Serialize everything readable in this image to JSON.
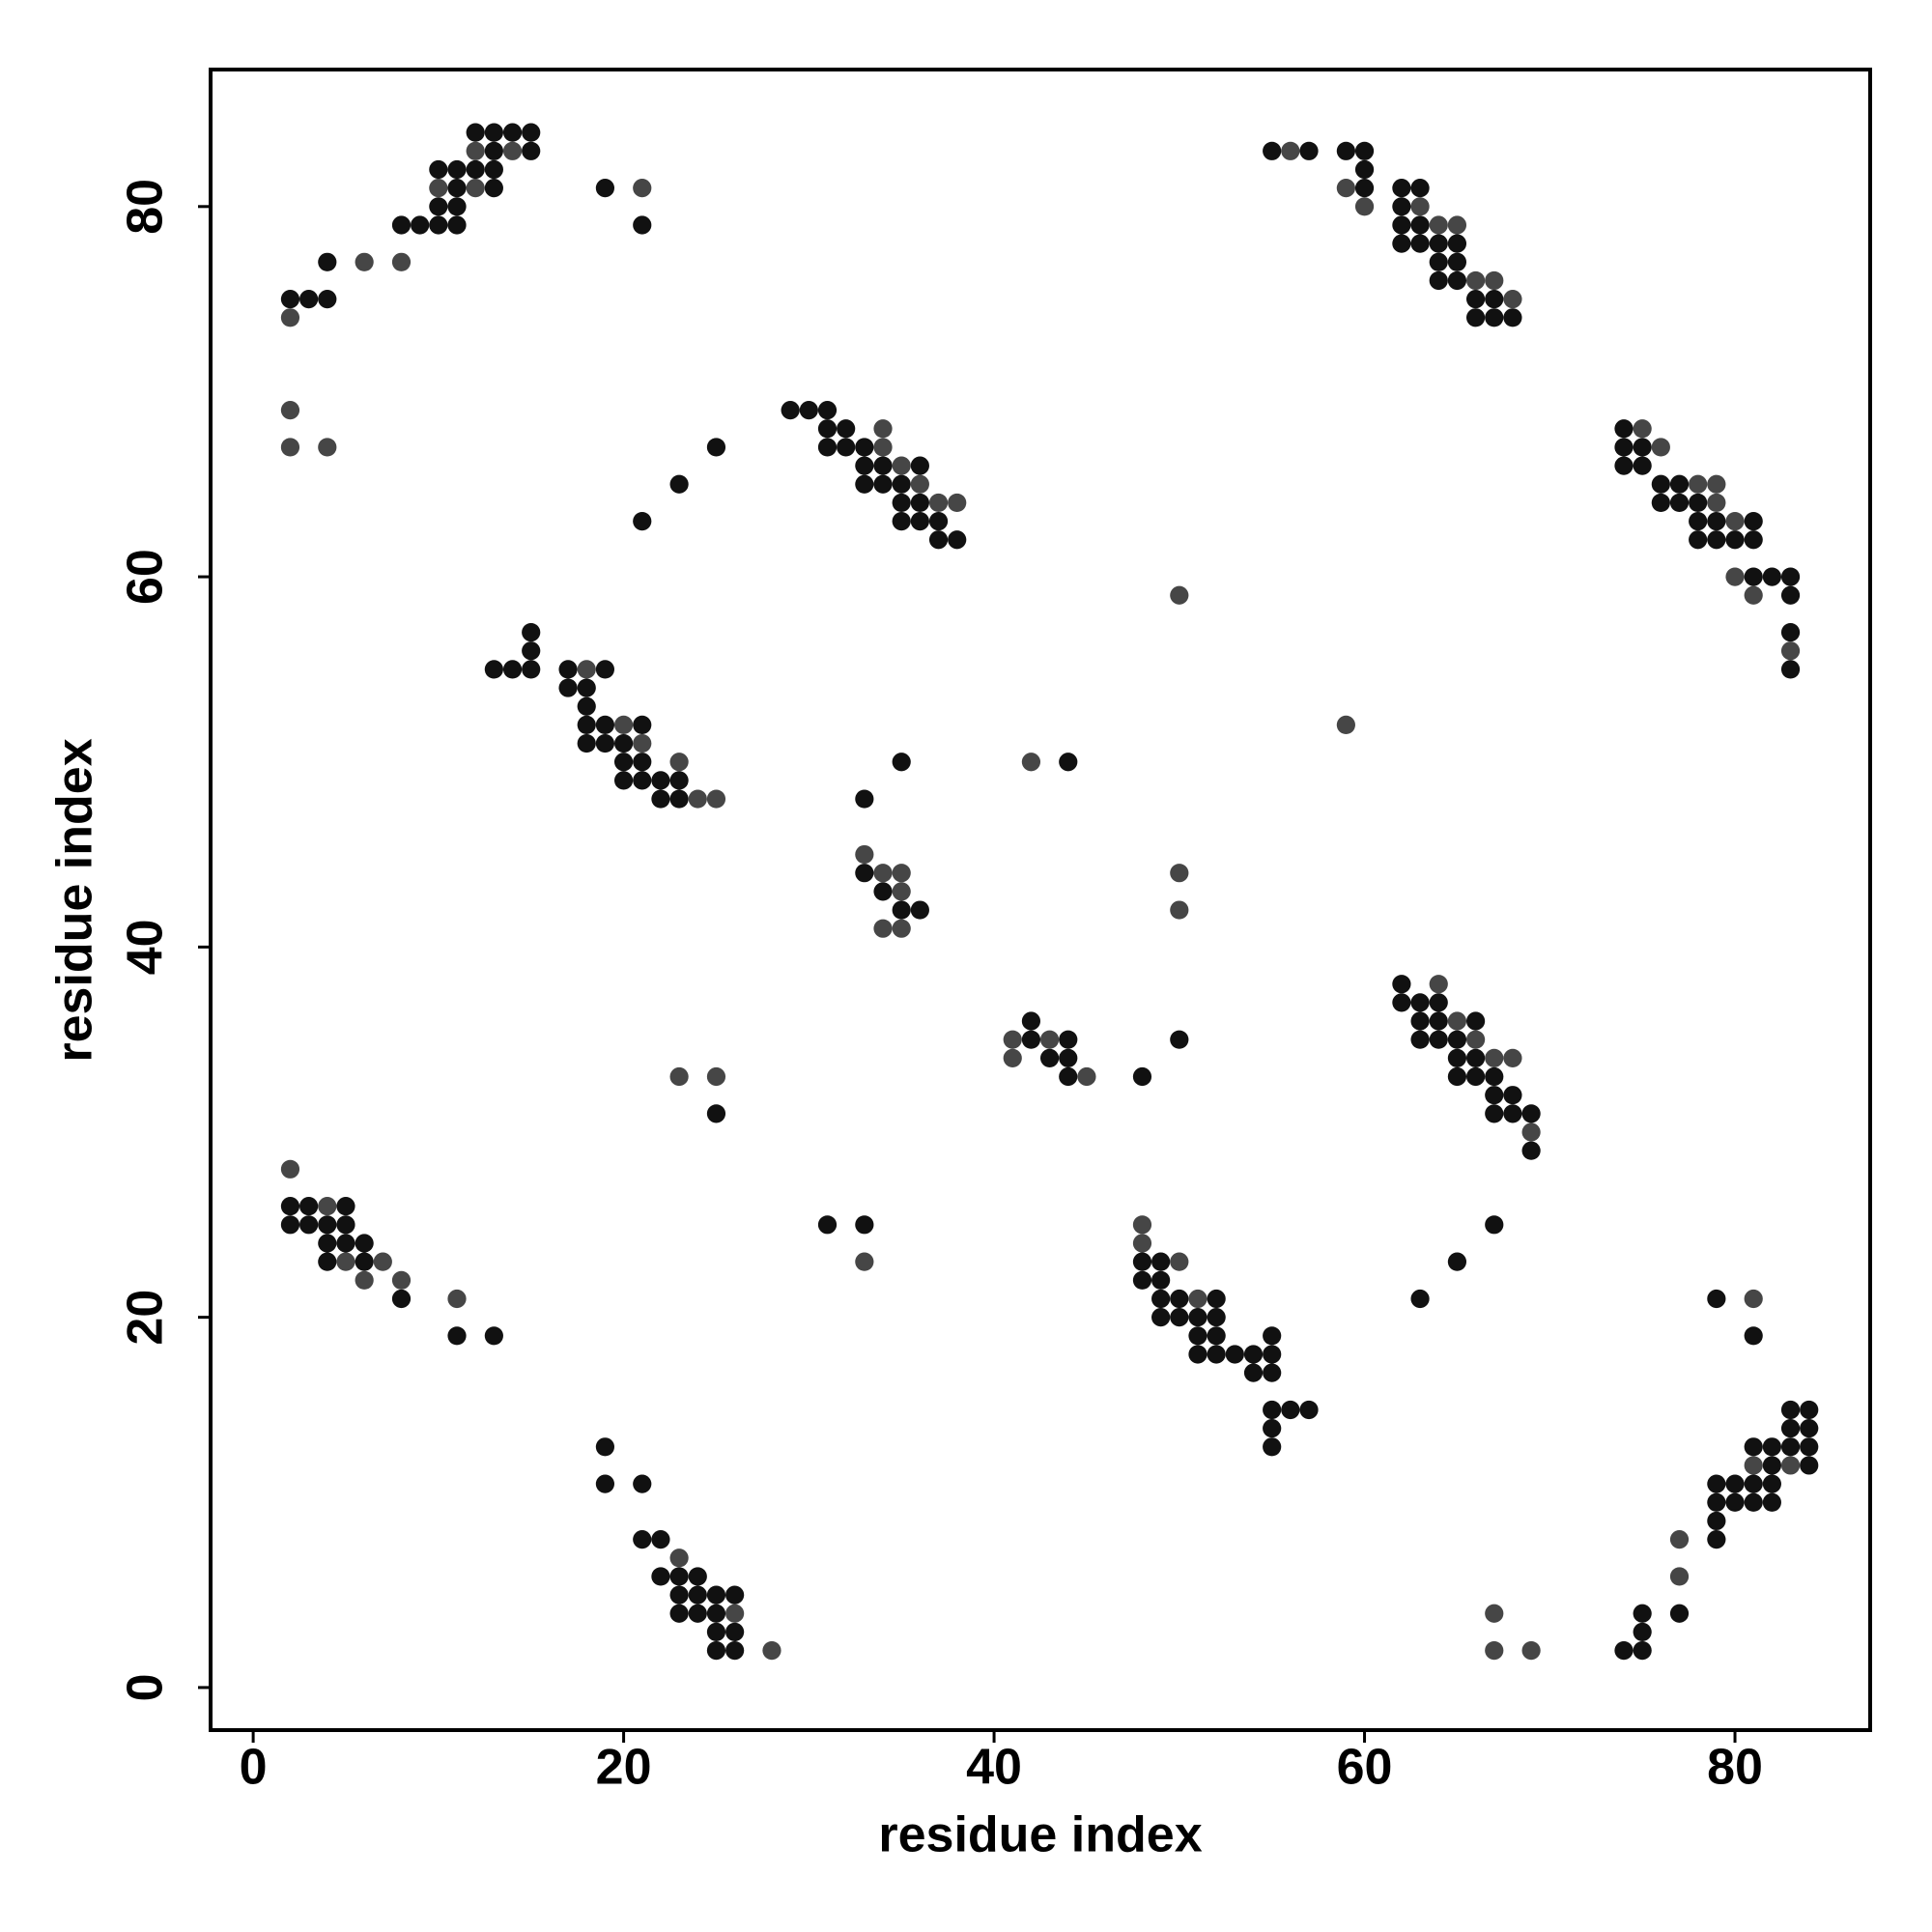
{
  "chart_data": {
    "type": "scatter",
    "xlabel": "residue index",
    "ylabel": "residue index",
    "xlim": [
      -2.3,
      87.3
    ],
    "ylim": [
      -2.3,
      87.4
    ],
    "xticks": [
      0,
      20,
      40,
      60,
      80
    ],
    "yticks": [
      0,
      20,
      40,
      60,
      80
    ],
    "series": [
      {
        "color": "#111111",
        "x": [
          12,
          13,
          14,
          15,
          13,
          15,
          55,
          57,
          59,
          60,
          10,
          11,
          12,
          13,
          60,
          11,
          13,
          19,
          60,
          62,
          63,
          10,
          11,
          62,
          8,
          9,
          10,
          11,
          21,
          62,
          63,
          62,
          63,
          64,
          65,
          4,
          64,
          65,
          64,
          65,
          2,
          3,
          4,
          66,
          67,
          66,
          67,
          68,
          29,
          30,
          31,
          31,
          32,
          74,
          25,
          31,
          32,
          33,
          74,
          75,
          33,
          34,
          36,
          74,
          75,
          23,
          33,
          34,
          35,
          76,
          77,
          35,
          36,
          76,
          77,
          78,
          21,
          35,
          36,
          37,
          78,
          79,
          81,
          37,
          38,
          78,
          79,
          80,
          81,
          81,
          82,
          83,
          83,
          15,
          83,
          15,
          13,
          14,
          15,
          17,
          19,
          83,
          17,
          18,
          18,
          18,
          19,
          21,
          18,
          19,
          20,
          20,
          21,
          35,
          44,
          20,
          21,
          22,
          23,
          22,
          23,
          33,
          33,
          34,
          35,
          36,
          62,
          62,
          63,
          64,
          42,
          63,
          64,
          66,
          42,
          44,
          50,
          63,
          64,
          65,
          43,
          44,
          65,
          66,
          44,
          48,
          65,
          66,
          67,
          67,
          68,
          25,
          67,
          68,
          69,
          69,
          2,
          3,
          5,
          2,
          3,
          4,
          5,
          31,
          33,
          67,
          4,
          5,
          6,
          4,
          6,
          48,
          49,
          65,
          48,
          49,
          8,
          49,
          50,
          52,
          63,
          79,
          49,
          50,
          51,
          52,
          11,
          13,
          51,
          52,
          55,
          81,
          51,
          52,
          53,
          54,
          55,
          54,
          55,
          55,
          56,
          57,
          83,
          84,
          55,
          83,
          84,
          19,
          55,
          81,
          82,
          83,
          84,
          82,
          84,
          19,
          21,
          79,
          80,
          81,
          82,
          79,
          80,
          81,
          82,
          79,
          21,
          22,
          79,
          22,
          23,
          24,
          23,
          24,
          25,
          26,
          23,
          24,
          25,
          75,
          77,
          25,
          26,
          75,
          25,
          26,
          74,
          75
        ],
        "y": [
          84,
          84,
          84,
          84,
          83,
          83,
          83,
          83,
          83,
          83,
          82,
          82,
          82,
          82,
          82,
          81,
          81,
          81,
          81,
          81,
          81,
          80,
          80,
          80,
          79,
          79,
          79,
          79,
          79,
          79,
          79,
          78,
          78,
          78,
          78,
          77,
          77,
          77,
          76,
          76,
          75,
          75,
          75,
          75,
          75,
          74,
          74,
          74,
          69,
          69,
          69,
          68,
          68,
          68,
          67,
          67,
          67,
          67,
          67,
          67,
          66,
          66,
          66,
          66,
          66,
          65,
          65,
          65,
          65,
          65,
          65,
          64,
          64,
          64,
          64,
          64,
          63,
          63,
          63,
          63,
          63,
          63,
          63,
          62,
          62,
          62,
          62,
          62,
          62,
          60,
          60,
          60,
          59,
          57,
          57,
          56,
          55,
          55,
          55,
          55,
          55,
          55,
          54,
          54,
          53,
          52,
          52,
          52,
          51,
          51,
          51,
          50,
          50,
          50,
          50,
          49,
          49,
          49,
          49,
          48,
          48,
          48,
          44,
          43,
          42,
          42,
          38,
          37,
          37,
          37,
          36,
          36,
          36,
          36,
          35,
          35,
          35,
          35,
          35,
          35,
          34,
          34,
          34,
          34,
          33,
          33,
          33,
          33,
          33,
          32,
          32,
          31,
          31,
          31,
          31,
          29,
          26,
          26,
          26,
          25,
          25,
          25,
          25,
          25,
          25,
          25,
          24,
          24,
          24,
          23,
          23,
          23,
          23,
          23,
          22,
          22,
          21,
          21,
          21,
          21,
          21,
          21,
          20,
          20,
          20,
          20,
          19,
          19,
          19,
          19,
          19,
          19,
          18,
          18,
          18,
          18,
          18,
          17,
          17,
          15,
          15,
          15,
          15,
          15,
          14,
          14,
          14,
          13,
          13,
          13,
          13,
          13,
          13,
          12,
          12,
          11,
          11,
          11,
          11,
          11,
          11,
          10,
          10,
          10,
          10,
          9,
          8,
          8,
          8,
          6,
          6,
          6,
          5,
          5,
          5,
          5,
          4,
          4,
          4,
          4,
          4,
          3,
          3,
          3,
          2,
          2,
          2,
          2
        ]
      },
      {
        "color": "#464646",
        "x": [
          12,
          14,
          56,
          10,
          12,
          21,
          59,
          60,
          63,
          64,
          65,
          6,
          8,
          66,
          67,
          68,
          2,
          2,
          34,
          75,
          2,
          4,
          34,
          76,
          35,
          36,
          78,
          79,
          37,
          38,
          79,
          80,
          80,
          50,
          81,
          83,
          18,
          20,
          59,
          21,
          23,
          42,
          24,
          25,
          33,
          34,
          35,
          50,
          35,
          50,
          34,
          35,
          64,
          65,
          41,
          43,
          66,
          41,
          67,
          68,
          23,
          25,
          45,
          69,
          2,
          4,
          48,
          48,
          5,
          7,
          33,
          50,
          6,
          8,
          11,
          51,
          81,
          81,
          83,
          77,
          23,
          77,
          26,
          67,
          28,
          67,
          69
        ],
        "y": [
          83,
          83,
          83,
          81,
          81,
          81,
          81,
          80,
          80,
          79,
          79,
          77,
          77,
          76,
          76,
          75,
          74,
          69,
          68,
          68,
          67,
          67,
          67,
          67,
          66,
          65,
          65,
          65,
          64,
          64,
          64,
          63,
          60,
          59,
          59,
          56,
          55,
          52,
          52,
          51,
          50,
          50,
          48,
          48,
          45,
          44,
          44,
          44,
          43,
          42,
          41,
          41,
          38,
          36,
          35,
          35,
          35,
          34,
          34,
          34,
          33,
          33,
          33,
          30,
          28,
          26,
          25,
          24,
          23,
          23,
          23,
          23,
          22,
          22,
          21,
          21,
          21,
          12,
          12,
          8,
          7,
          6,
          4,
          4,
          2,
          2,
          2
        ]
      }
    ]
  }
}
